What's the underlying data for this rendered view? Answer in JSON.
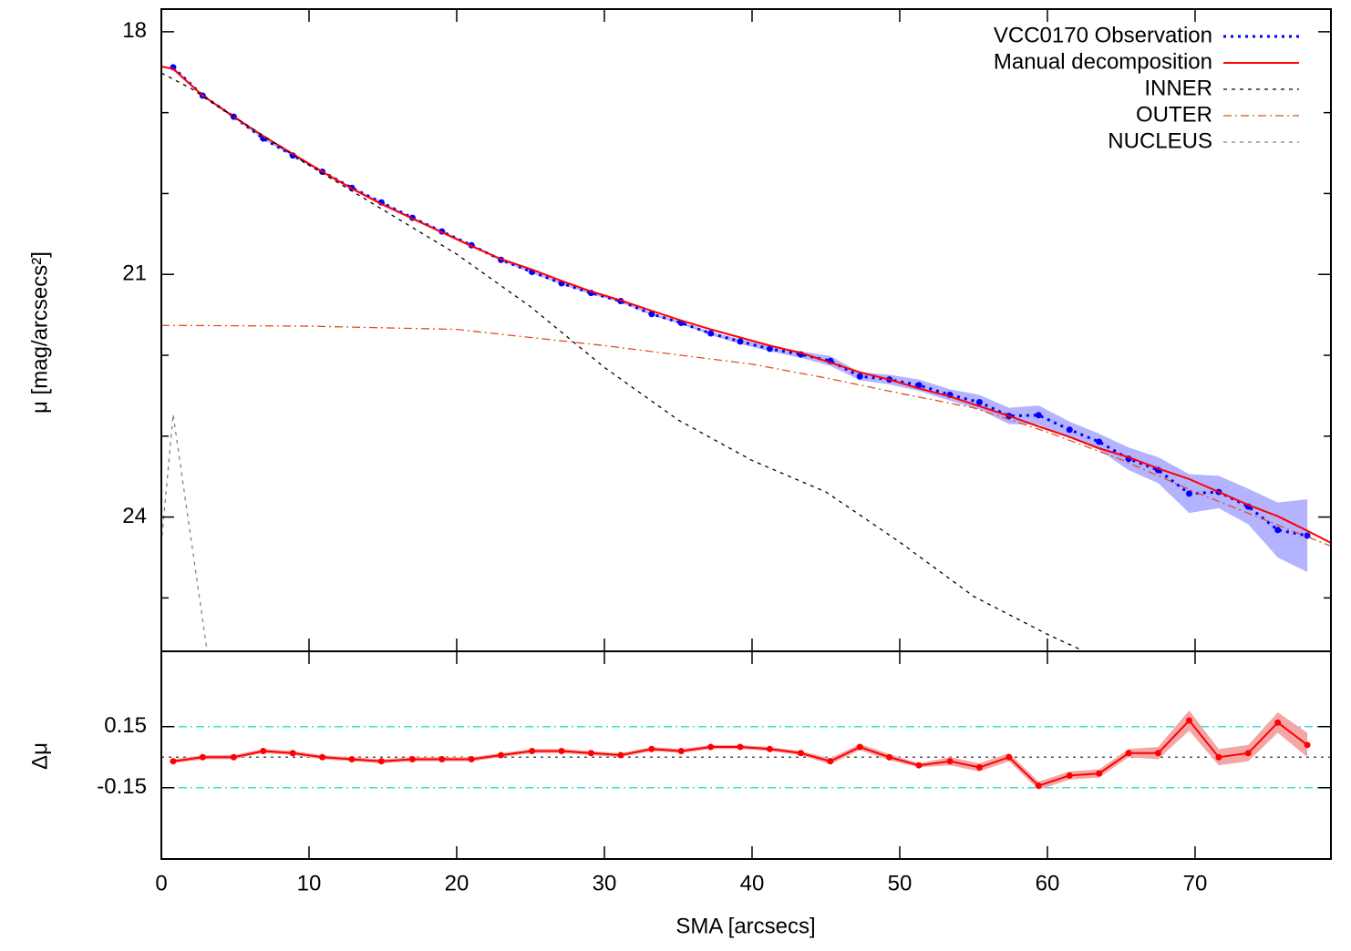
{
  "chart_data": [
    {
      "type": "line",
      "ylabel": "μ [mag/arcsecs²]",
      "xlim": [
        0,
        79.2
      ],
      "ylim": [
        25.66,
        17.72
      ],
      "yticks": [
        18,
        21,
        24
      ],
      "yminorticks": [
        19,
        20,
        22,
        23,
        25
      ],
      "legend": "top right",
      "series": [
        {
          "name": "VCC0170 Observation",
          "color": "#0000ff",
          "dash": "dotted",
          "points": true,
          "band_color": "#b3b3ff",
          "x": [
            0.8,
            2.8,
            4.9,
            6.9,
            8.9,
            10.9,
            12.9,
            14.9,
            17.0,
            19.0,
            21.0,
            23.0,
            25.1,
            27.1,
            29.1,
            31.1,
            33.2,
            35.2,
            37.2,
            39.2,
            41.2,
            43.3,
            45.3,
            47.3,
            49.3,
            51.3,
            53.4,
            55.4,
            57.4,
            59.4,
            61.5,
            63.5,
            65.5,
            67.5,
            69.6,
            71.6,
            73.6,
            75.6,
            77.6
          ],
          "values": [
            18.44,
            18.79,
            19.05,
            19.32,
            19.53,
            19.73,
            19.93,
            20.11,
            20.3,
            20.47,
            20.64,
            20.82,
            20.97,
            21.11,
            21.23,
            21.33,
            21.49,
            21.6,
            21.73,
            21.83,
            21.92,
            21.99,
            22.07,
            22.26,
            22.3,
            22.37,
            22.49,
            22.58,
            22.75,
            22.74,
            22.92,
            23.07,
            23.28,
            23.42,
            23.71,
            23.69,
            23.87,
            24.16,
            24.23
          ],
          "errors": [
            0.01,
            0.01,
            0.01,
            0.01,
            0.01,
            0.01,
            0.01,
            0.01,
            0.01,
            0.01,
            0.01,
            0.015,
            0.015,
            0.015,
            0.015,
            0.015,
            0.015,
            0.015,
            0.02,
            0.03,
            0.03,
            0.04,
            0.06,
            0.05,
            0.06,
            0.07,
            0.07,
            0.09,
            0.1,
            0.12,
            0.1,
            0.1,
            0.14,
            0.16,
            0.24,
            0.2,
            0.22,
            0.34,
            0.45
          ]
        },
        {
          "name": "Manual decomposition",
          "color": "#ff0000",
          "dash": "solid",
          "x": [
            0,
            0.8,
            2.8,
            4.9,
            6.9,
            8.9,
            10.9,
            12.9,
            14.9,
            17.0,
            19.0,
            21.0,
            23.0,
            25.1,
            27.1,
            29.1,
            31.1,
            33.2,
            35.2,
            37.2,
            39.2,
            41.2,
            43.3,
            45.3,
            47.3,
            49.3,
            51.3,
            53.4,
            55.4,
            57.4,
            59.4,
            61.5,
            63.5,
            65.5,
            67.5,
            69.6,
            71.6,
            73.6,
            75.6,
            77.6,
            79.2
          ],
          "values": [
            18.43,
            18.46,
            18.79,
            19.05,
            19.29,
            19.51,
            19.73,
            19.94,
            20.13,
            20.31,
            20.48,
            20.65,
            20.81,
            20.94,
            21.08,
            21.21,
            21.32,
            21.45,
            21.57,
            21.68,
            21.78,
            21.88,
            21.97,
            22.09,
            22.21,
            22.3,
            22.41,
            22.51,
            22.63,
            22.75,
            22.88,
            23.01,
            23.15,
            23.26,
            23.4,
            23.53,
            23.69,
            23.85,
            23.99,
            24.17,
            24.32
          ]
        },
        {
          "name": "INNER",
          "color": "#000000",
          "dash": "dashed",
          "x": [
            0,
            2,
            5,
            10,
            15,
            20,
            25,
            30,
            35,
            40,
            45,
            50,
            55,
            60,
            62.5
          ],
          "values": [
            18.51,
            18.7,
            19.06,
            19.65,
            20.2,
            20.75,
            21.4,
            22.15,
            22.8,
            23.3,
            23.69,
            24.31,
            24.98,
            25.45,
            25.66
          ]
        },
        {
          "name": "OUTER",
          "color": "#e0501a",
          "dash": "dashdot",
          "x": [
            0,
            10,
            20,
            30,
            40,
            45,
            50,
            55,
            60,
            65,
            70,
            79.2
          ],
          "values": [
            21.63,
            21.64,
            21.68,
            21.88,
            22.11,
            22.28,
            22.47,
            22.65,
            22.95,
            23.29,
            23.69,
            24.36
          ]
        },
        {
          "name": "NUCLEUS",
          "color": "#808080",
          "dash": "dashed",
          "x": [
            0,
            0.8,
            3.1
          ],
          "values": [
            24.33,
            22.73,
            25.66
          ]
        }
      ]
    },
    {
      "type": "line",
      "ylabel": "Δμ",
      "xlabel": "SMA [arcsecs]",
      "xlim": [
        0,
        79.2
      ],
      "ylim": [
        -0.5,
        0.52
      ],
      "xticks": [
        0,
        10,
        20,
        30,
        40,
        50,
        60,
        70
      ],
      "yticks": [
        -0.15,
        0.15
      ],
      "hlines": [
        {
          "value": 0.15,
          "color": "#40e0d0",
          "dash": "dashdot"
        },
        {
          "value": -0.15,
          "color": "#40e0d0",
          "dash": "dashdot"
        },
        {
          "value": 0,
          "color": "#555555",
          "dash": "dotted"
        }
      ],
      "series": [
        {
          "color": "#ff0000",
          "band_color": "#f4a6a6",
          "points": true,
          "dash": "solid",
          "values": [
            -0.02,
            0,
            0,
            0.03,
            0.02,
            0,
            -0.01,
            -0.02,
            -0.01,
            -0.01,
            -0.01,
            0.01,
            0.03,
            0.03,
            0.02,
            0.01,
            0.04,
            0.03,
            0.05,
            0.05,
            0.04,
            0.02,
            -0.02,
            0.05,
            0,
            -0.04,
            -0.02,
            -0.05,
            0,
            -0.14,
            -0.09,
            -0.08,
            0.02,
            0.02,
            0.18,
            0,
            0.02,
            0.17,
            0.06
          ],
          "errors": [
            0.01,
            0.01,
            0.01,
            0.01,
            0.01,
            0.01,
            0.01,
            0.01,
            0.01,
            0.01,
            0.01,
            0.01,
            0.01,
            0.01,
            0.01,
            0.01,
            0.01,
            0.01,
            0.01,
            0.01,
            0.01,
            0.01,
            0.015,
            0.015,
            0.015,
            0.01,
            0.02,
            0.02,
            0.02,
            0.02,
            0.02,
            0.02,
            0.02,
            0.03,
            0.05,
            0.04,
            0.04,
            0.05,
            0.06
          ]
        }
      ]
    }
  ]
}
